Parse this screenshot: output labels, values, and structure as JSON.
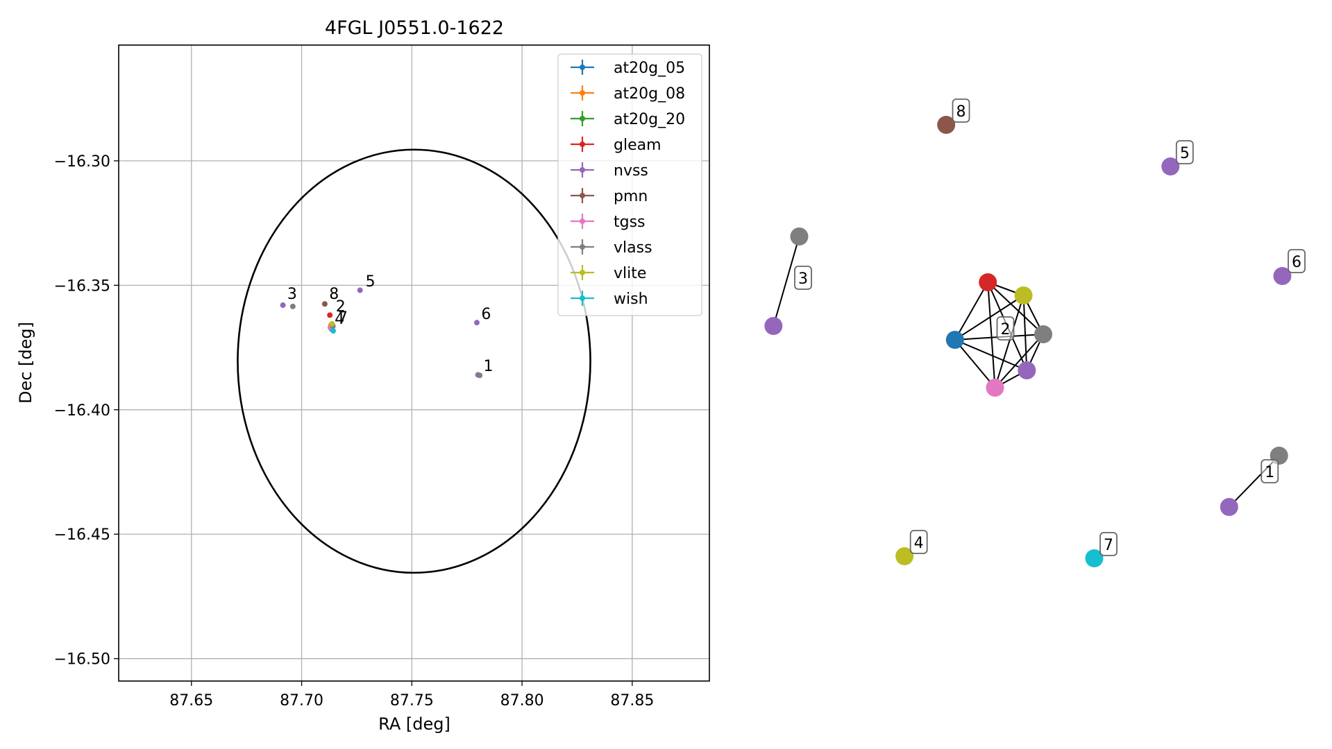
{
  "chart_data": [
    {
      "type": "scatter",
      "title": "4FGL J0551.0-1622",
      "xlabel": "RA [deg]",
      "ylabel": "Dec [deg]",
      "xlim": [
        87.617,
        87.885
      ],
      "ylim": [
        -16.509,
        -16.2535
      ],
      "xticks": [
        87.65,
        87.7,
        87.75,
        87.8,
        87.85
      ],
      "xtick_labels": [
        "87.65",
        "87.70",
        "87.75",
        "87.80",
        "87.85"
      ],
      "yticks": [
        -16.3,
        -16.35,
        -16.4,
        -16.45,
        -16.5
      ],
      "ytick_labels": [
        "−16.30",
        "−16.35",
        "−16.40",
        "−16.45",
        "−16.50"
      ],
      "grid": true,
      "legend_position": "top-right",
      "series": [
        {
          "name": "at20g_05",
          "color": "#1f77b4",
          "points": [
            [
              87.7135,
              -16.3675
            ]
          ]
        },
        {
          "name": "at20g_08",
          "color": "#ff7f0e",
          "points": [
            [
              87.7133,
              -16.366
            ]
          ]
        },
        {
          "name": "at20g_20",
          "color": "#2ca02c",
          "points": [
            [
              87.7137,
              -16.3665
            ]
          ]
        },
        {
          "name": "gleam",
          "color": "#d62728",
          "points": [
            [
              87.7128,
              -16.362
            ]
          ]
        },
        {
          "name": "nvss",
          "color": "#9467bd",
          "points": [
            [
              87.6915,
              -16.358
            ],
            [
              87.7265,
              -16.352
            ],
            [
              87.7795,
              -16.365
            ],
            [
              87.714,
              -16.366
            ],
            [
              87.78,
              -16.386
            ]
          ]
        },
        {
          "name": "pmn",
          "color": "#8c564b",
          "points": [
            [
              87.7105,
              -16.3575
            ]
          ]
        },
        {
          "name": "tgss",
          "color": "#e377c2",
          "points": [
            [
              87.713,
              -16.367
            ]
          ]
        },
        {
          "name": "vlass",
          "color": "#7f7f7f",
          "points": [
            [
              87.696,
              -16.3585
            ],
            [
              87.7808,
              -16.3862
            ],
            [
              87.7142,
              -16.3665
            ]
          ]
        },
        {
          "name": "vlite",
          "color": "#bcbd22",
          "points": [
            [
              87.7138,
              -16.3655
            ]
          ]
        },
        {
          "name": "wish",
          "color": "#17becf",
          "points": [
            [
              87.7143,
              -16.3683
            ]
          ]
        }
      ],
      "ellipse": {
        "center": [
          87.751,
          -16.3805
        ],
        "semi_axis_ra": 0.08,
        "semi_axis_dec": 0.085,
        "color": "#000000"
      },
      "point_labels": [
        {
          "text": "3",
          "x": 87.6935,
          "y": -16.3555
        },
        {
          "text": "8",
          "x": 87.7125,
          "y": -16.3555
        },
        {
          "text": "5",
          "x": 87.729,
          "y": -16.3505
        },
        {
          "text": "2",
          "x": 87.7155,
          "y": -16.3605
        },
        {
          "text": "7",
          "x": 87.7165,
          "y": -16.365
        },
        {
          "text": "4",
          "x": 87.715,
          "y": -16.3655
        },
        {
          "text": "6",
          "x": 87.7815,
          "y": -16.3635
        },
        {
          "text": "1",
          "x": 87.7825,
          "y": -16.3845
        }
      ]
    },
    {
      "type": "graph",
      "nodes": [
        {
          "id": "c2-gleam",
          "color": "#d62728",
          "pos": [
            0.399,
            0.382
          ]
        },
        {
          "id": "c2-vlite",
          "color": "#bcbd22",
          "pos": [
            0.464,
            0.401
          ]
        },
        {
          "id": "c2-at20g",
          "color": "#1f77b4",
          "pos": [
            0.339,
            0.465
          ]
        },
        {
          "id": "c2-vlass",
          "color": "#7f7f7f",
          "pos": [
            0.5,
            0.457
          ]
        },
        {
          "id": "c2-nvss",
          "color": "#9467bd",
          "pos": [
            0.47,
            0.509
          ]
        },
        {
          "id": "c2-tgss",
          "color": "#e377c2",
          "pos": [
            0.412,
            0.534
          ]
        },
        {
          "id": "c8-pmn",
          "color": "#8c564b",
          "pos": [
            0.323,
            0.155
          ]
        },
        {
          "id": "c5-nvss",
          "color": "#9467bd",
          "pos": [
            0.732,
            0.215
          ]
        },
        {
          "id": "c3-vlass",
          "color": "#7f7f7f",
          "pos": [
            0.055,
            0.316
          ]
        },
        {
          "id": "c3-nvss",
          "color": "#9467bd",
          "pos": [
            0.008,
            0.445
          ]
        },
        {
          "id": "c6-nvss",
          "color": "#9467bd",
          "pos": [
            0.936,
            0.373
          ]
        },
        {
          "id": "c1-vlass",
          "color": "#7f7f7f",
          "pos": [
            0.93,
            0.632
          ]
        },
        {
          "id": "c1-nvss",
          "color": "#9467bd",
          "pos": [
            0.839,
            0.706
          ]
        },
        {
          "id": "c4-vlite",
          "color": "#bcbd22",
          "pos": [
            0.247,
            0.777
          ]
        },
        {
          "id": "c7-wish",
          "color": "#17becf",
          "pos": [
            0.593,
            0.78
          ]
        }
      ],
      "edges": [
        [
          "c2-gleam",
          "c2-vlite"
        ],
        [
          "c2-gleam",
          "c2-at20g"
        ],
        [
          "c2-gleam",
          "c2-vlass"
        ],
        [
          "c2-gleam",
          "c2-nvss"
        ],
        [
          "c2-gleam",
          "c2-tgss"
        ],
        [
          "c2-vlite",
          "c2-at20g"
        ],
        [
          "c2-vlite",
          "c2-vlass"
        ],
        [
          "c2-vlite",
          "c2-nvss"
        ],
        [
          "c2-vlite",
          "c2-tgss"
        ],
        [
          "c2-at20g",
          "c2-vlass"
        ],
        [
          "c2-at20g",
          "c2-nvss"
        ],
        [
          "c2-at20g",
          "c2-tgss"
        ],
        [
          "c2-vlass",
          "c2-nvss"
        ],
        [
          "c2-vlass",
          "c2-tgss"
        ],
        [
          "c2-nvss",
          "c2-tgss"
        ],
        [
          "c3-vlass",
          "c3-nvss"
        ],
        [
          "c1-vlass",
          "c1-nvss"
        ]
      ],
      "labels": [
        {
          "text": "2",
          "pos": [
            0.431,
            0.449
          ]
        },
        {
          "text": "8",
          "pos": [
            0.35,
            0.135
          ]
        },
        {
          "text": "5",
          "pos": [
            0.758,
            0.195
          ]
        },
        {
          "text": "3",
          "pos": [
            0.062,
            0.376
          ]
        },
        {
          "text": "6",
          "pos": [
            0.962,
            0.352
          ]
        },
        {
          "text": "1",
          "pos": [
            0.913,
            0.655
          ]
        },
        {
          "text": "4",
          "pos": [
            0.273,
            0.757
          ]
        },
        {
          "text": "7",
          "pos": [
            0.619,
            0.76
          ]
        }
      ]
    }
  ]
}
